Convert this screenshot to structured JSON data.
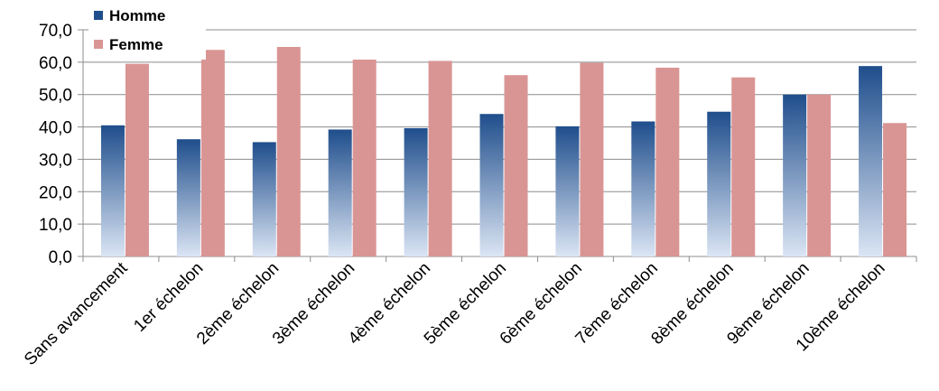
{
  "chart_data": {
    "type": "bar",
    "title": "",
    "xlabel": "",
    "ylabel": "",
    "ylim": [
      0,
      70
    ],
    "yticks": [
      "0,0",
      "10,0",
      "20,0",
      "30,0",
      "40,0",
      "50,0",
      "60,0",
      "70,0"
    ],
    "grid": true,
    "legend_position": "top-left",
    "categories": [
      "Sans avancement",
      "1er échelon",
      "2ème échelon",
      "3ème échelon",
      "4ème échelon",
      "5ème échelon",
      "6ème échelon",
      "7ème échelon",
      "8ème échelon",
      "9ème échelon",
      "10ème échelon"
    ],
    "series": [
      {
        "name": "Homme",
        "color": "#1f4e8c",
        "values": [
          40.5,
          36.2,
          35.3,
          39.2,
          39.6,
          44.0,
          40.2,
          41.7,
          44.7,
          50.0,
          58.8
        ]
      },
      {
        "name": "Femme",
        "color": "#d99594",
        "values": [
          59.5,
          63.8,
          64.7,
          60.8,
          60.4,
          56.0,
          59.8,
          58.3,
          55.3,
          50.0,
          41.2
        ]
      }
    ]
  }
}
